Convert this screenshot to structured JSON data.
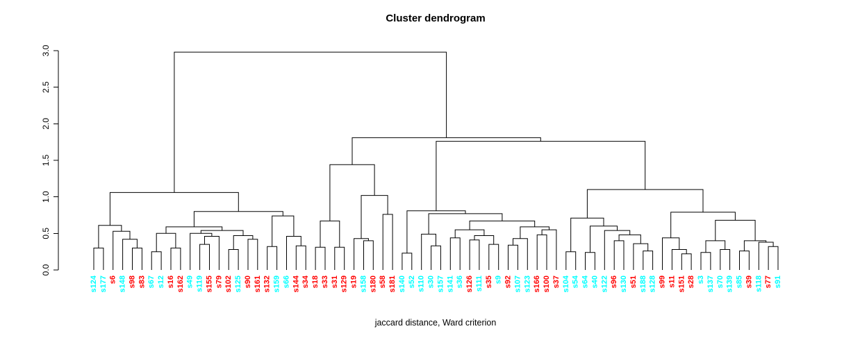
{
  "title": "Cluster dendrogram",
  "xlabel": "jaccard distance, Ward criterion",
  "colors": {
    "red": "#FF0000",
    "cyan": "#00FFFF",
    "line": "#000000"
  },
  "y_axis": {
    "tick_labels": [
      "0.0",
      "0.5",
      "1.0",
      "1.5",
      "2.0",
      "2.5",
      "3.0"
    ],
    "min": 0,
    "max": 3
  },
  "chart_data": {
    "type": "dendrogram",
    "title": "Cluster dendrogram",
    "xlabel": "jaccard distance, Ward criterion",
    "ylim": [
      0,
      3
    ],
    "y_ticks": [
      0.0,
      0.5,
      1.0,
      1.5,
      2.0,
      2.5,
      3.0
    ],
    "grid": false,
    "leaf_label_orientation": "vertical",
    "leaves": [
      {
        "label": "s124",
        "color": "cyan"
      },
      {
        "label": "s177",
        "color": "cyan"
      },
      {
        "label": "s6",
        "color": "red"
      },
      {
        "label": "s148",
        "color": "cyan"
      },
      {
        "label": "s98",
        "color": "red"
      },
      {
        "label": "s83",
        "color": "red"
      },
      {
        "label": "s67",
        "color": "cyan"
      },
      {
        "label": "s12",
        "color": "cyan"
      },
      {
        "label": "s16",
        "color": "red"
      },
      {
        "label": "s162",
        "color": "red"
      },
      {
        "label": "s49",
        "color": "cyan"
      },
      {
        "label": "s119",
        "color": "cyan"
      },
      {
        "label": "s155",
        "color": "red"
      },
      {
        "label": "s79",
        "color": "red"
      },
      {
        "label": "s102",
        "color": "red"
      },
      {
        "label": "s125",
        "color": "cyan"
      },
      {
        "label": "s90",
        "color": "red"
      },
      {
        "label": "s161",
        "color": "red"
      },
      {
        "label": "s132",
        "color": "red"
      },
      {
        "label": "s159",
        "color": "cyan"
      },
      {
        "label": "s66",
        "color": "cyan"
      },
      {
        "label": "s144",
        "color": "red"
      },
      {
        "label": "s34",
        "color": "red"
      },
      {
        "label": "s18",
        "color": "red"
      },
      {
        "label": "s33",
        "color": "red"
      },
      {
        "label": "s31",
        "color": "red"
      },
      {
        "label": "s129",
        "color": "red"
      },
      {
        "label": "s19",
        "color": "red"
      },
      {
        "label": "s158",
        "color": "cyan"
      },
      {
        "label": "s180",
        "color": "red"
      },
      {
        "label": "s58",
        "color": "red"
      },
      {
        "label": "s181",
        "color": "red"
      },
      {
        "label": "s140",
        "color": "cyan"
      },
      {
        "label": "s52",
        "color": "cyan"
      },
      {
        "label": "s110",
        "color": "cyan"
      },
      {
        "label": "s30",
        "color": "cyan"
      },
      {
        "label": "s157",
        "color": "cyan"
      },
      {
        "label": "s141",
        "color": "cyan"
      },
      {
        "label": "s36",
        "color": "cyan"
      },
      {
        "label": "s126",
        "color": "red"
      },
      {
        "label": "s111",
        "color": "cyan"
      },
      {
        "label": "s35",
        "color": "red"
      },
      {
        "label": "s9",
        "color": "cyan"
      },
      {
        "label": "s92",
        "color": "red"
      },
      {
        "label": "s107",
        "color": "cyan"
      },
      {
        "label": "s123",
        "color": "cyan"
      },
      {
        "label": "s166",
        "color": "red"
      },
      {
        "label": "s100",
        "color": "red"
      },
      {
        "label": "s37",
        "color": "red"
      },
      {
        "label": "s104",
        "color": "cyan"
      },
      {
        "label": "s54",
        "color": "cyan"
      },
      {
        "label": "s64",
        "color": "cyan"
      },
      {
        "label": "s40",
        "color": "cyan"
      },
      {
        "label": "s122",
        "color": "cyan"
      },
      {
        "label": "s96",
        "color": "red"
      },
      {
        "label": "s130",
        "color": "cyan"
      },
      {
        "label": "s51",
        "color": "red"
      },
      {
        "label": "s188",
        "color": "cyan"
      },
      {
        "label": "s128",
        "color": "cyan"
      },
      {
        "label": "s99",
        "color": "red"
      },
      {
        "label": "s11",
        "color": "red"
      },
      {
        "label": "s151",
        "color": "red"
      },
      {
        "label": "s28",
        "color": "red"
      },
      {
        "label": "s3",
        "color": "cyan"
      },
      {
        "label": "s137",
        "color": "cyan"
      },
      {
        "label": "s70",
        "color": "cyan"
      },
      {
        "label": "s139",
        "color": "cyan"
      },
      {
        "label": "s85",
        "color": "cyan"
      },
      {
        "label": "s39",
        "color": "red"
      },
      {
        "label": "s118",
        "color": "cyan"
      },
      {
        "label": "s77",
        "color": "red"
      },
      {
        "label": "s91",
        "color": "cyan"
      }
    ],
    "tree": [
      2.98,
      [
        1.06,
        [
          0.61,
          [
            0.3,
            0,
            1
          ],
          [
            0.53,
            2,
            [
              0.42,
              3,
              [
                0.3,
                4,
                5
              ]
            ]
          ]
        ],
        [
          0.8,
          [
            0.59,
            [
              0.5,
              [
                0.25,
                6,
                7
              ],
              [
                0.3,
                8,
                9
              ]
            ],
            [
              0.54,
              [
                0.5,
                10,
                [
                  0.46,
                  [
                    0.35,
                    11,
                    12
                  ],
                  13
                ]
              ],
              [
                0.47,
                [
                  0.28,
                  14,
                  15
                ],
                [
                  0.42,
                  16,
                  17
                ]
              ]
            ]
          ],
          [
            0.74,
            [
              0.32,
              18,
              19
            ],
            [
              0.46,
              20,
              [
                0.33,
                21,
                22
              ]
            ]
          ]
        ]
      ],
      [
        1.81,
        [
          1.44,
          [
            0.67,
            [
              0.31,
              23,
              24
            ],
            [
              0.31,
              25,
              26
            ]
          ],
          [
            1.02,
            [
              0.43,
              27,
              [
                0.4,
                28,
                29
              ]
            ],
            [
              0.76,
              30,
              31
            ]
          ]
        ],
        [
          1.76,
          [
            0.81,
            [
              0.23,
              32,
              33
            ],
            [
              0.77,
              [
                0.49,
                34,
                [
                  0.33,
                  35,
                  36
                ]
              ],
              [
                0.67,
                [
                  0.55,
                  [
                    0.44,
                    37,
                    38
                  ],
                  [
                    0.47,
                    [
                      0.41,
                      39,
                      40
                    ],
                    [
                      0.35,
                      41,
                      42
                    ]
                  ]
                ],
                [
                  0.59,
                  [
                    0.43,
                    [
                      0.34,
                      43,
                      44
                    ],
                    45
                  ],
                  [
                    0.55,
                    [
                      0.48,
                      46,
                      47
                    ],
                    48
                  ]
                ]
              ]
            ]
          ],
          [
            1.1,
            [
              0.71,
              [
                0.25,
                49,
                50
              ],
              [
                0.6,
                [
                  0.24,
                  51,
                  52
                ],
                [
                  0.54,
                  53,
                  [
                    0.48,
                    [
                      0.4,
                      54,
                      55
                    ],
                    [
                      0.36,
                      56,
                      [
                        0.26,
                        57,
                        58
                      ]
                    ]
                  ]
                ]
              ]
            ],
            [
              0.79,
              [
                0.44,
                59,
                [
                  0.28,
                  60,
                  [
                    0.22,
                    61,
                    62
                  ]
                ]
              ],
              [
                0.68,
                [
                  0.4,
                  [
                    0.24,
                    63,
                    64
                  ],
                  [
                    0.28,
                    65,
                    66
                  ]
                ],
                [
                  0.4,
                  [
                    0.26,
                    67,
                    68
                  ],
                  [
                    0.38,
                    69,
                    [
                      0.32,
                      70,
                      71
                    ]
                  ]
                ]
              ]
            ]
          ]
        ]
      ]
    ]
  }
}
